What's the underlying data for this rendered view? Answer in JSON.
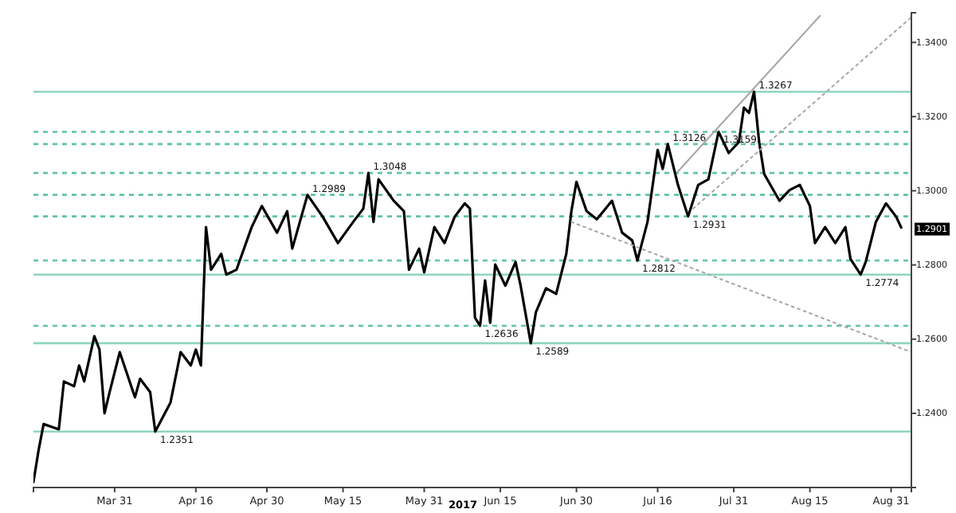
{
  "chart_data": {
    "type": "line",
    "xlabel": "2017",
    "x": [
      "2017-03-15",
      "2017-03-16",
      "2017-03-17",
      "2017-03-20",
      "2017-03-21",
      "2017-03-23",
      "2017-03-24",
      "2017-03-25",
      "2017-03-27",
      "2017-03-28",
      "2017-03-29",
      "2017-03-30",
      "2017-04-01",
      "2017-04-04",
      "2017-04-05",
      "2017-04-07",
      "2017-04-08",
      "2017-04-11",
      "2017-04-13",
      "2017-04-15",
      "2017-04-16",
      "2017-04-17",
      "2017-04-18",
      "2017-04-19",
      "2017-04-21",
      "2017-04-22",
      "2017-04-24",
      "2017-04-27",
      "2017-04-29",
      "2017-05-02",
      "2017-05-04",
      "2017-05-05",
      "2017-05-08",
      "2017-05-11",
      "2017-05-14",
      "2017-05-17",
      "2017-05-19",
      "2017-05-20",
      "2017-05-21",
      "2017-05-22",
      "2017-05-25",
      "2017-05-27",
      "2017-05-28",
      "2017-05-30",
      "2017-05-31",
      "2017-06-02",
      "2017-06-04",
      "2017-06-06",
      "2017-06-08",
      "2017-06-09",
      "2017-06-10",
      "2017-06-11",
      "2017-06-12",
      "2017-06-13",
      "2017-06-14",
      "2017-06-16",
      "2017-06-18",
      "2017-06-19",
      "2017-06-21",
      "2017-06-22",
      "2017-06-24",
      "2017-06-26",
      "2017-06-28",
      "2017-06-29",
      "2017-06-30",
      "2017-07-02",
      "2017-07-04",
      "2017-07-07",
      "2017-07-09",
      "2017-07-11",
      "2017-07-12",
      "2017-07-14",
      "2017-07-16",
      "2017-07-17",
      "2017-07-18",
      "2017-07-20",
      "2017-07-22",
      "2017-07-24",
      "2017-07-26",
      "2017-07-28",
      "2017-07-30",
      "2017-08-01",
      "2017-08-02",
      "2017-08-03",
      "2017-08-04",
      "2017-08-05",
      "2017-08-06",
      "2017-08-09",
      "2017-08-11",
      "2017-08-13",
      "2017-08-15",
      "2017-08-16",
      "2017-08-18",
      "2017-08-20",
      "2017-08-22",
      "2017-08-23",
      "2017-08-25",
      "2017-08-26",
      "2017-08-28",
      "2017-08-30",
      "2017-09-01",
      "2017-09-02"
    ],
    "series": [
      {
        "color": "#000000",
        "values": [
          1.2215,
          1.23,
          1.2371,
          1.2357,
          1.2486,
          1.2473,
          1.2529,
          1.2486,
          1.2608,
          1.2572,
          1.24,
          1.2457,
          1.2565,
          1.2443,
          1.2493,
          1.2457,
          1.2351,
          1.2429,
          1.2565,
          1.2529,
          1.2572,
          1.2529,
          1.2902,
          1.2787,
          1.283,
          1.2774,
          1.2787,
          1.2902,
          1.2959,
          1.2887,
          1.2945,
          1.2844,
          1.2989,
          1.293,
          1.2859,
          1.2916,
          1.2952,
          1.3048,
          1.2916,
          1.3031,
          1.2973,
          1.2945,
          1.2787,
          1.2844,
          1.278,
          1.2902,
          1.2859,
          1.293,
          1.2966,
          1.2952,
          1.2658,
          1.2636,
          1.2758,
          1.2644,
          1.2801,
          1.2744,
          1.2808,
          1.2744,
          1.2589,
          1.2672,
          1.2737,
          1.2722,
          1.283,
          1.2945,
          1.3024,
          1.2945,
          1.2923,
          1.2973,
          1.2887,
          1.2866,
          1.2812,
          1.2916,
          1.311,
          1.3059,
          1.3126,
          1.3016,
          1.2931,
          1.3016,
          1.3031,
          1.3159,
          1.3102,
          1.3131,
          1.3224,
          1.321,
          1.3267,
          1.3131,
          1.3045,
          1.2973,
          1.3002,
          1.3016,
          1.2959,
          1.2859,
          1.2902,
          1.2859,
          1.2902,
          1.2816,
          1.2774,
          1.2808,
          1.2916,
          1.2966,
          1.293,
          1.2901
        ]
      },
      {
        "type": "line",
        "color": "#a6a6a6",
        "line_style": "solid",
        "x": [
          "2017-07-20",
          "2017-08-17"
        ],
        "values": [
          1.3052,
          1.3472
        ]
      },
      {
        "type": "line",
        "color": "#a6a6a6",
        "line_style": "dotted",
        "x": [
          "2017-07-23",
          "2017-09-04"
        ],
        "values": [
          1.2952,
          1.3468
        ]
      },
      {
        "type": "line",
        "color": "#a6a6a6",
        "line_style": "dotted",
        "x": [
          "2017-06-29",
          "2017-09-04"
        ],
        "values": [
          1.2916,
          1.2565
        ]
      }
    ],
    "xlim": [
      "2017-03-15",
      "2017-09-04"
    ],
    "xticks": [
      {
        "value": "2017-03-31",
        "label": "Mar 31"
      },
      {
        "value": "2017-04-16",
        "label": "Apr 16"
      },
      {
        "value": "2017-04-30",
        "label": "Apr 30"
      },
      {
        "value": "2017-05-15",
        "label": "May 15"
      },
      {
        "value": "2017-05-31",
        "label": "May 31"
      },
      {
        "value": "2017-06-15",
        "label": "Jun 15"
      },
      {
        "value": "2017-06-30",
        "label": "Jun 30"
      },
      {
        "value": "2017-07-16",
        "label": "Jul 16"
      },
      {
        "value": "2017-07-31",
        "label": "Jul 31"
      },
      {
        "value": "2017-08-15",
        "label": "Aug 15"
      },
      {
        "value": "2017-08-31",
        "label": "Aug 31"
      }
    ],
    "ylim": [
      1.22,
      1.348
    ],
    "yticks": [
      {
        "value": 1.24,
        "label": "1.2400"
      },
      {
        "value": 1.26,
        "label": "1.2600"
      },
      {
        "value": 1.28,
        "label": "1.2800"
      },
      {
        "value": 1.3,
        "label": "1.3000"
      },
      {
        "value": 1.32,
        "label": "1.3200"
      },
      {
        "value": 1.34,
        "label": "1.3400"
      }
    ],
    "ref_lines": [
      {
        "axis": "y",
        "value": 1.3267,
        "color": "#8fd6bd",
        "line_style": "solid"
      },
      {
        "axis": "y",
        "value": 1.3159,
        "color": "#5fc4a0",
        "line_style": "dashed"
      },
      {
        "axis": "y",
        "value": 1.3126,
        "color": "#5fc4a0",
        "line_style": "dashed"
      },
      {
        "axis": "y",
        "value": 1.3048,
        "color": "#5fc4a0",
        "line_style": "dashed"
      },
      {
        "axis": "y",
        "value": 1.2989,
        "color": "#5fc4a0",
        "line_style": "dashed"
      },
      {
        "axis": "y",
        "value": 1.2931,
        "color": "#5fc4a0",
        "line_style": "dashed"
      },
      {
        "axis": "y",
        "value": 1.2812,
        "color": "#5fc4a0",
        "line_style": "dashed"
      },
      {
        "axis": "y",
        "value": 1.2774,
        "color": "#8fd6bd",
        "line_style": "solid"
      },
      {
        "axis": "y",
        "value": 1.2636,
        "color": "#5fc4a0",
        "line_style": "dashed"
      },
      {
        "axis": "y",
        "value": 1.2589,
        "color": "#8fd6bd",
        "line_style": "solid"
      },
      {
        "axis": "y",
        "value": 1.2351,
        "color": "#8fd6bd",
        "line_style": "solid"
      }
    ],
    "annotations": [
      {
        "text": "1.3267",
        "x": "2017-08-04",
        "y": 1.3267
      },
      {
        "text": "1.3159",
        "x": "2017-07-28",
        "y": 1.3159
      },
      {
        "text": "1.3126",
        "x": "2017-07-18",
        "y": 1.3126
      },
      {
        "text": "1.3048",
        "x": "2017-05-20",
        "y": 1.3048
      },
      {
        "text": "1.2989",
        "x": "2017-05-08",
        "y": 1.2989
      },
      {
        "text": "1.2931",
        "x": "2017-07-22",
        "y": 1.2931
      },
      {
        "text": "1.2812",
        "x": "2017-07-12",
        "y": 1.2812
      },
      {
        "text": "1.2774",
        "x": "2017-08-25",
        "y": 1.2774
      },
      {
        "text": "1.2636",
        "x": "2017-06-11",
        "y": 1.2636
      },
      {
        "text": "1.2589",
        "x": "2017-06-21",
        "y": 1.2589
      },
      {
        "text": "1.2351",
        "x": "2017-04-08",
        "y": 1.2351
      },
      {
        "text": "1.2901",
        "x": "2017-09-02",
        "y": 1.2901
      }
    ],
    "grid": false
  }
}
